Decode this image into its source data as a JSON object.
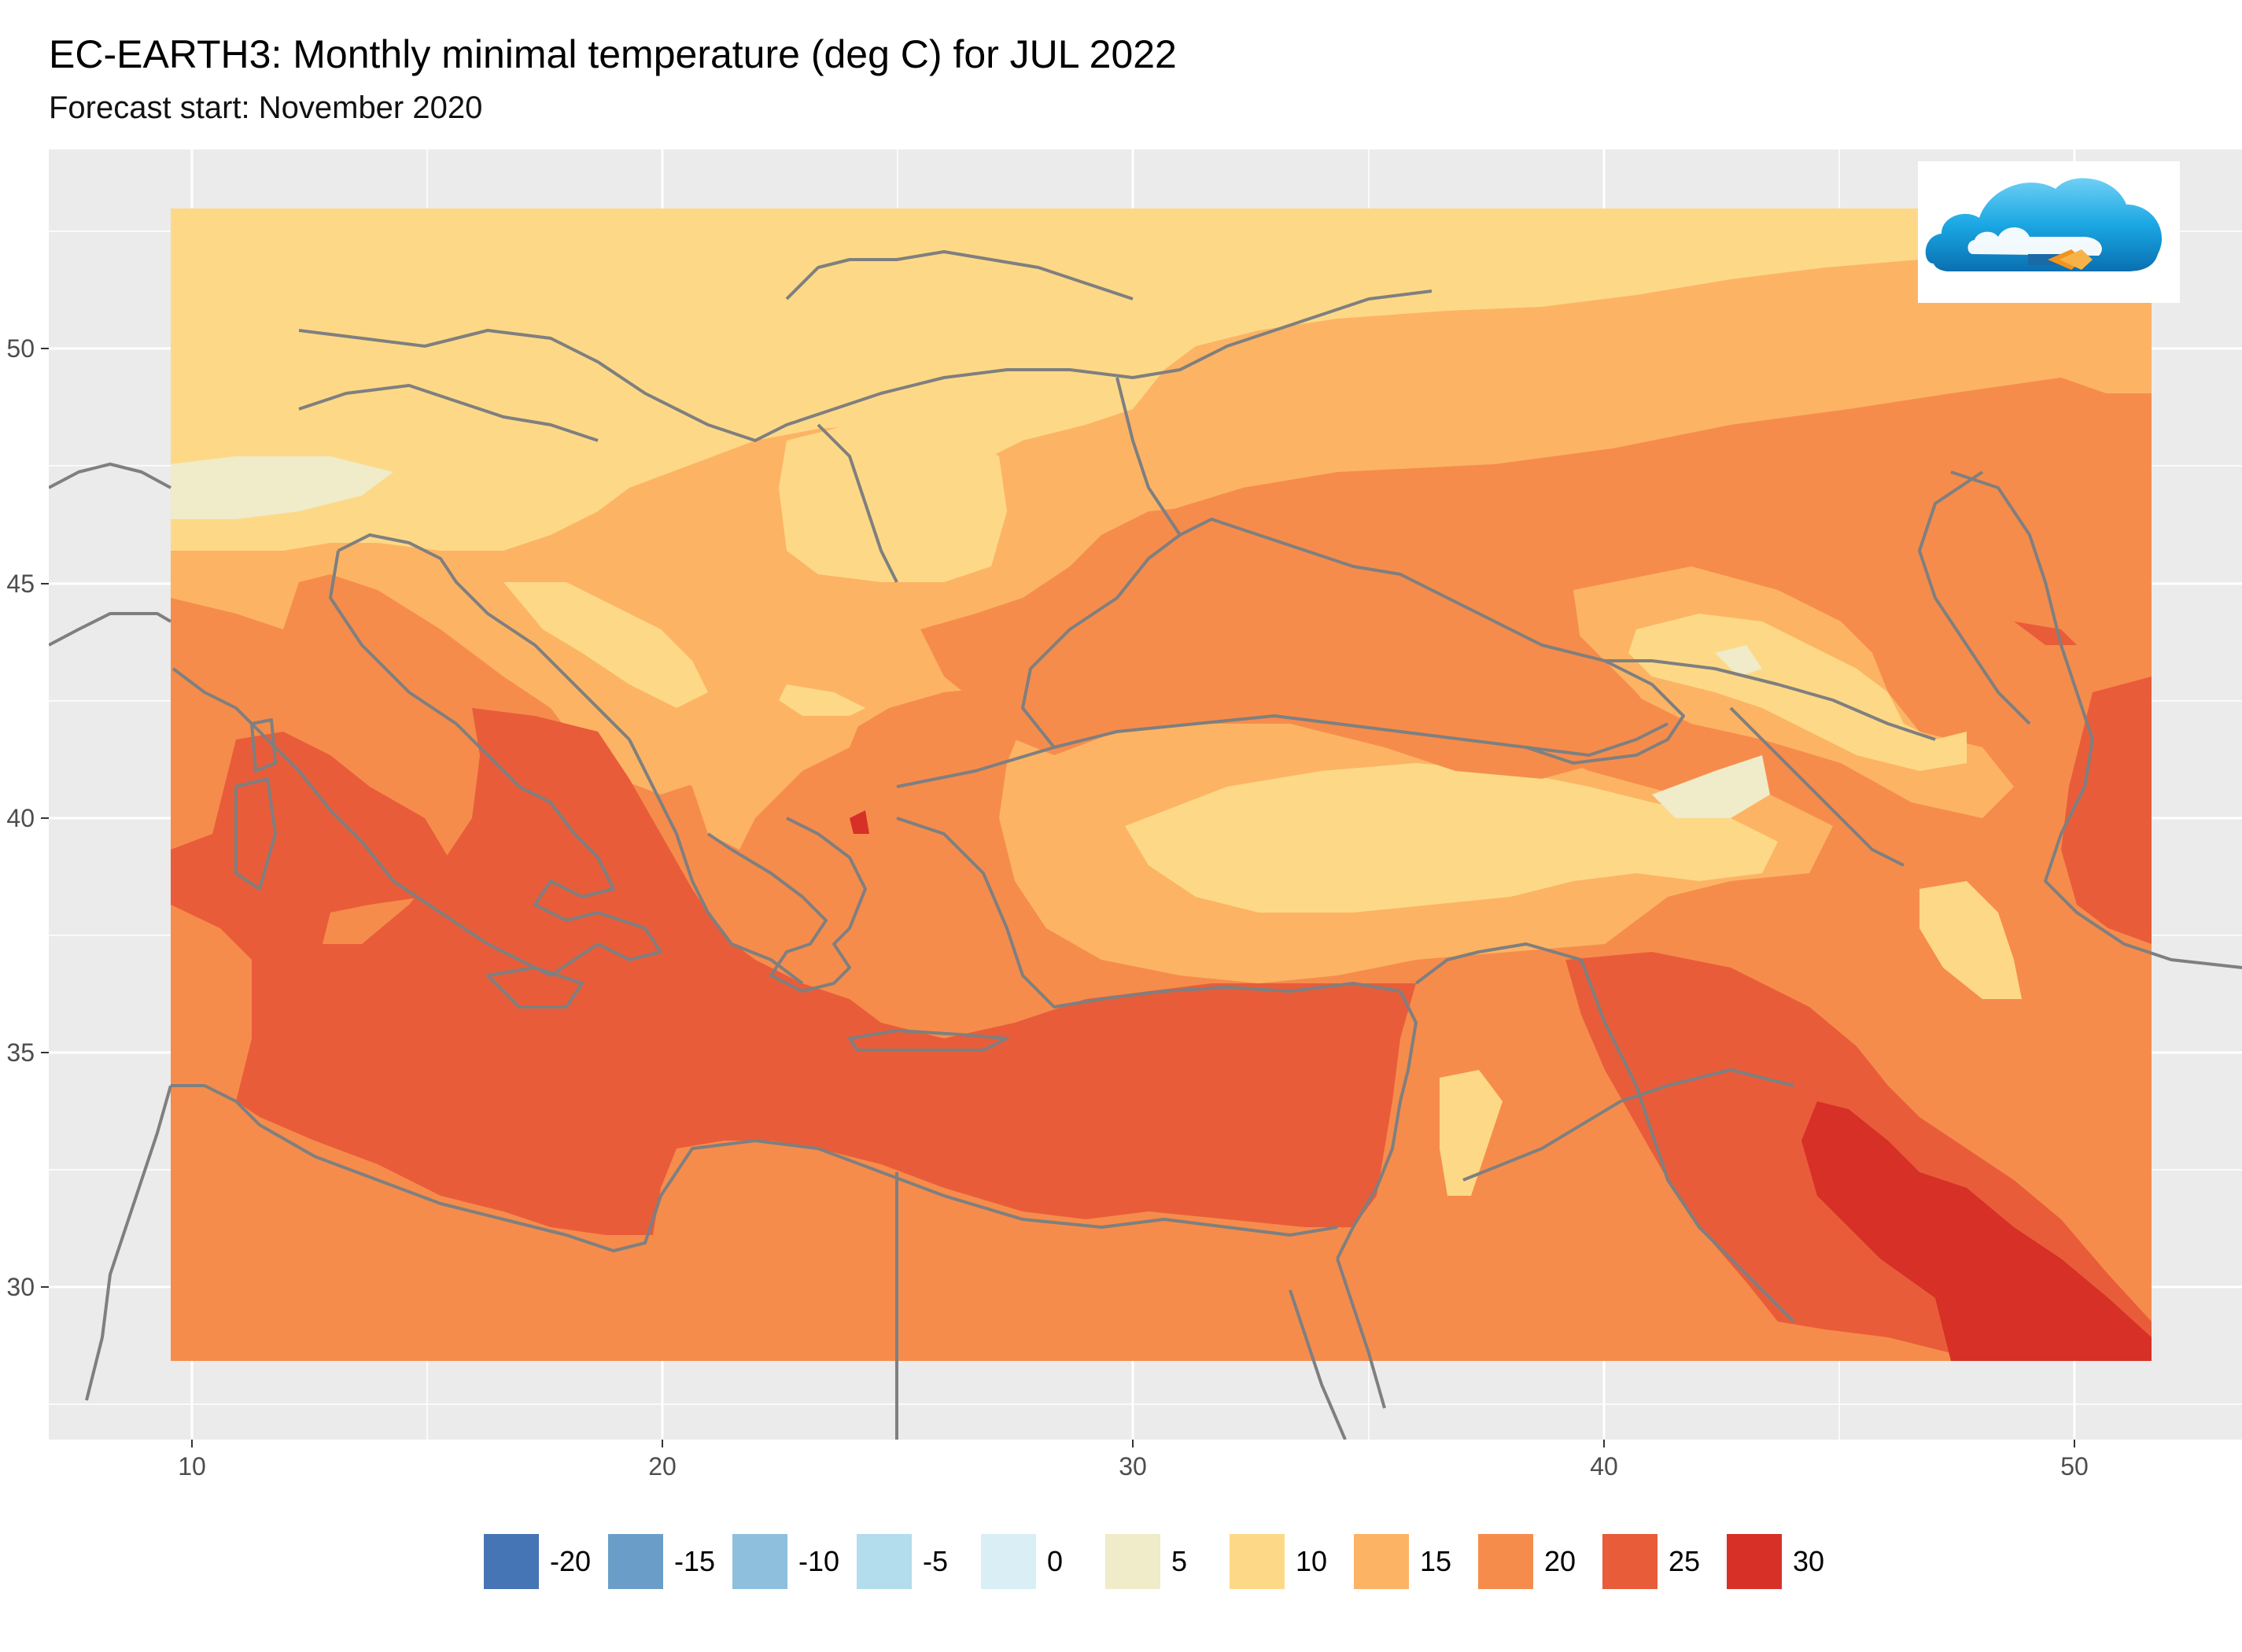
{
  "header": {
    "title": "EC-EARTH3: Monthly minimal temperature (deg C) for JUL 2022",
    "subtitle": "Forecast start: November 2020"
  },
  "axes": {
    "x_ticks": [
      "10",
      "20",
      "30",
      "40",
      "50"
    ],
    "y_ticks": [
      "50",
      "45",
      "40",
      "35",
      "30"
    ]
  },
  "legend": {
    "items": [
      {
        "label": "-20",
        "color": "#4575b4"
      },
      {
        "label": "-15",
        "color": "#6a9ec9"
      },
      {
        "label": "-10",
        "color": "#8ebfdc"
      },
      {
        "label": "-5",
        "color": "#b3dcec"
      },
      {
        "label": "0",
        "color": "#d9eef5"
      },
      {
        "label": "5",
        "color": "#f0ebc8"
      },
      {
        "label": "10",
        "color": "#fdd987"
      },
      {
        "label": "15",
        "color": "#fcb464"
      },
      {
        "label": "20",
        "color": "#f68c4c"
      },
      {
        "label": "25",
        "color": "#e95c3a"
      },
      {
        "label": "30",
        "color": "#d63027"
      }
    ]
  },
  "map": {
    "lon_range": [
      7,
      54
    ],
    "lat_range": [
      26.8,
      54
    ],
    "panel_background": "#ebebeb",
    "border_color": "#7f7f7f"
  },
  "logo": {
    "icon": "cloud-logo-icon"
  }
}
